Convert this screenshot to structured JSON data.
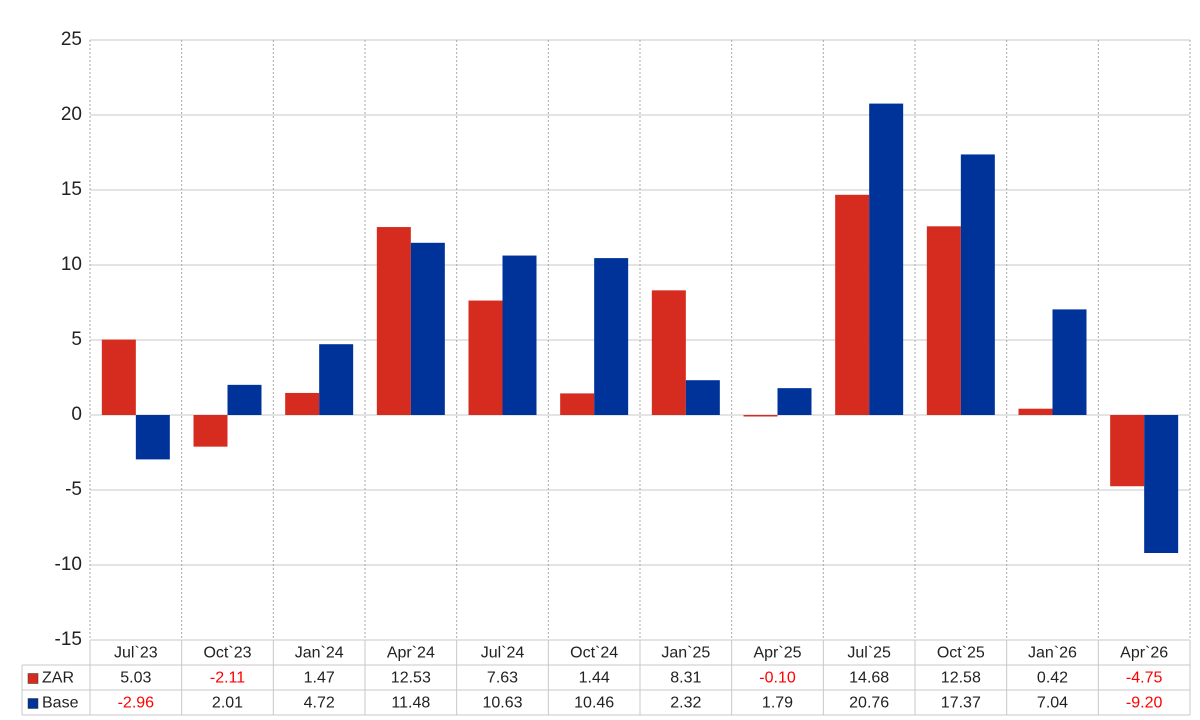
{
  "chart_data": {
    "type": "bar",
    "categories": [
      "Jul`23",
      "Oct`23",
      "Jan`24",
      "Apr`24",
      "Jul`24",
      "Oct`24",
      "Jan`25",
      "Apr`25",
      "Jul`25",
      "Oct`25",
      "Jan`26",
      "Apr`26"
    ],
    "series": [
      {
        "name": "ZAR",
        "color": "#d62b1f",
        "values": [
          5.03,
          -2.11,
          1.47,
          12.53,
          7.63,
          1.44,
          8.31,
          -0.1,
          14.68,
          12.58,
          0.42,
          -4.75
        ],
        "value_labels": [
          "5.03",
          "-2.11",
          "1.47",
          "12.53",
          "7.63",
          "1.44",
          "8.31",
          "-0.10",
          "14.68",
          "12.58",
          "0.42",
          "-4.75"
        ]
      },
      {
        "name": "Base",
        "color": "#003399",
        "values": [
          -2.96,
          2.01,
          4.72,
          11.48,
          10.63,
          10.46,
          2.32,
          1.79,
          20.76,
          17.37,
          7.04,
          -9.2
        ],
        "value_labels": [
          "-2.96",
          "2.01",
          "4.72",
          "11.48",
          "10.63",
          "10.46",
          "2.32",
          "1.79",
          "20.76",
          "17.37",
          "7.04",
          "-9.20"
        ]
      }
    ],
    "ylim": [
      -15,
      25
    ],
    "yticks": [
      -15,
      -10,
      -5,
      0,
      5,
      10,
      15,
      20,
      25
    ],
    "grid": true,
    "negative_label_color": "#ff0000"
  }
}
